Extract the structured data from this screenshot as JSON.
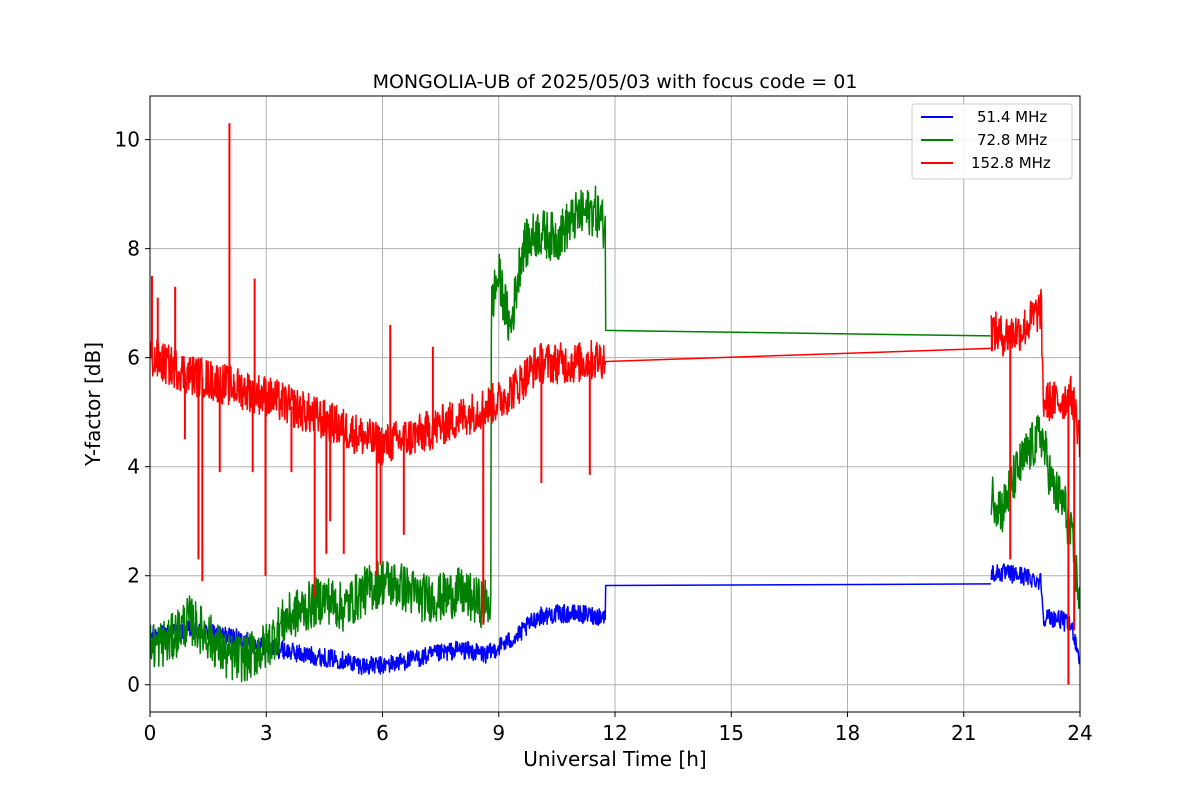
{
  "chart_data": {
    "type": "line",
    "title": "MONGOLIA-UB of 2025/05/03 with focus code = 01",
    "xlabel": "Universal Time [h]",
    "ylabel": "Y-factor [dB]",
    "xlim": [
      0,
      24
    ],
    "ylim": [
      -0.5,
      10.8
    ],
    "xticks": [
      0,
      3,
      6,
      9,
      12,
      15,
      18,
      21,
      24
    ],
    "xtick_labels": [
      "0",
      "3",
      "6",
      "9",
      "12",
      "15",
      "18",
      "21",
      "24"
    ],
    "yticks": [
      0,
      2,
      4,
      6,
      8,
      10
    ],
    "ytick_labels": [
      "0",
      "2",
      "4",
      "6",
      "8",
      "10"
    ],
    "grid": true,
    "legend_position": "top-right",
    "series": [
      {
        "name": "51.4 MHz",
        "color": "#0000ff",
        "x": [
          0,
          1,
          2,
          3,
          4,
          5,
          5.5,
          6,
          7,
          8,
          8.7,
          9,
          9.5,
          10,
          10.5,
          11,
          11.75,
          11.76,
          21.7,
          21.71,
          22,
          22.5,
          23,
          23.05,
          23.5,
          23.8,
          24
        ],
        "y": [
          0.9,
          1.0,
          0.9,
          0.7,
          0.55,
          0.45,
          0.35,
          0.35,
          0.5,
          0.65,
          0.55,
          0.7,
          0.9,
          1.25,
          1.3,
          1.3,
          1.25,
          1.82,
          1.85,
          2.05,
          2.05,
          2.0,
          1.9,
          1.25,
          1.2,
          1.05,
          0.45
        ],
        "noise": 0.17
      },
      {
        "name": "72.8 MHz",
        "color": "#008000",
        "x": [
          0,
          0.5,
          1,
          1.5,
          2,
          2.5,
          3,
          3.5,
          4,
          4.5,
          5,
          5.5,
          6,
          6.5,
          7,
          7.5,
          8,
          8.5,
          8.8,
          8.81,
          9,
          9.3,
          9.6,
          10,
          10.5,
          11,
          11.5,
          11.75,
          11.76,
          21.7,
          21.71,
          22,
          22.3,
          22.6,
          23,
          23.3,
          23.6,
          23.8,
          24
        ],
        "y": [
          0.7,
          0.8,
          1.2,
          0.9,
          0.5,
          0.5,
          0.7,
          1.2,
          1.4,
          1.6,
          1.4,
          1.7,
          1.9,
          1.8,
          1.6,
          1.6,
          1.7,
          1.5,
          1.5,
          7.0,
          7.5,
          6.5,
          8.0,
          8.3,
          8.2,
          8.6,
          8.7,
          8.4,
          6.5,
          6.4,
          3.5,
          3.2,
          3.8,
          4.2,
          4.6,
          3.6,
          3.3,
          2.6,
          1.5
        ],
        "noise": 0.45
      },
      {
        "name": "152.8 MHz",
        "color": "#ff0000",
        "x": [
          0,
          1,
          2,
          3,
          4,
          5,
          6,
          7,
          8,
          9,
          9.5,
          10,
          10.5,
          11,
          11.75,
          11.76,
          21.7,
          21.71,
          22,
          22.5,
          23,
          23.05,
          23.5,
          23.8,
          24
        ],
        "y": [
          6.0,
          5.7,
          5.5,
          5.3,
          5.0,
          4.7,
          4.4,
          4.6,
          4.9,
          5.2,
          5.5,
          5.9,
          5.9,
          5.9,
          6.0,
          5.93,
          6.17,
          6.5,
          6.4,
          6.5,
          6.9,
          5.2,
          5.2,
          5.3,
          4.5
        ],
        "noise": 0.38,
        "spikes": [
          {
            "x": 2.05,
            "y": 10.3
          },
          {
            "x": 0.05,
            "y": 7.5
          },
          {
            "x": 0.2,
            "y": 7.1
          },
          {
            "x": 0.65,
            "y": 7.3
          },
          {
            "x": 2.7,
            "y": 7.45
          },
          {
            "x": 6.2,
            "y": 6.6
          },
          {
            "x": 7.3,
            "y": 6.2
          },
          {
            "x": 1.25,
            "y": 2.3
          },
          {
            "x": 1.35,
            "y": 1.9
          },
          {
            "x": 2.98,
            "y": 2.0
          },
          {
            "x": 2.65,
            "y": 3.9
          },
          {
            "x": 3.65,
            "y": 3.9
          },
          {
            "x": 4.25,
            "y": 1.6
          },
          {
            "x": 4.55,
            "y": 2.4
          },
          {
            "x": 4.65,
            "y": 3.0
          },
          {
            "x": 5.0,
            "y": 2.4
          },
          {
            "x": 5.85,
            "y": 2.0
          },
          {
            "x": 5.95,
            "y": 2.2
          },
          {
            "x": 6.55,
            "y": 2.75
          },
          {
            "x": 8.6,
            "y": 1.1
          },
          {
            "x": 0.9,
            "y": 4.5
          },
          {
            "x": 1.8,
            "y": 3.9
          },
          {
            "x": 10.1,
            "y": 3.7
          },
          {
            "x": 11.35,
            "y": 3.85
          },
          {
            "x": 22.2,
            "y": 2.3
          },
          {
            "x": 23.7,
            "y": 0.0
          },
          {
            "x": 23.85,
            "y": 1.0
          }
        ]
      }
    ]
  }
}
